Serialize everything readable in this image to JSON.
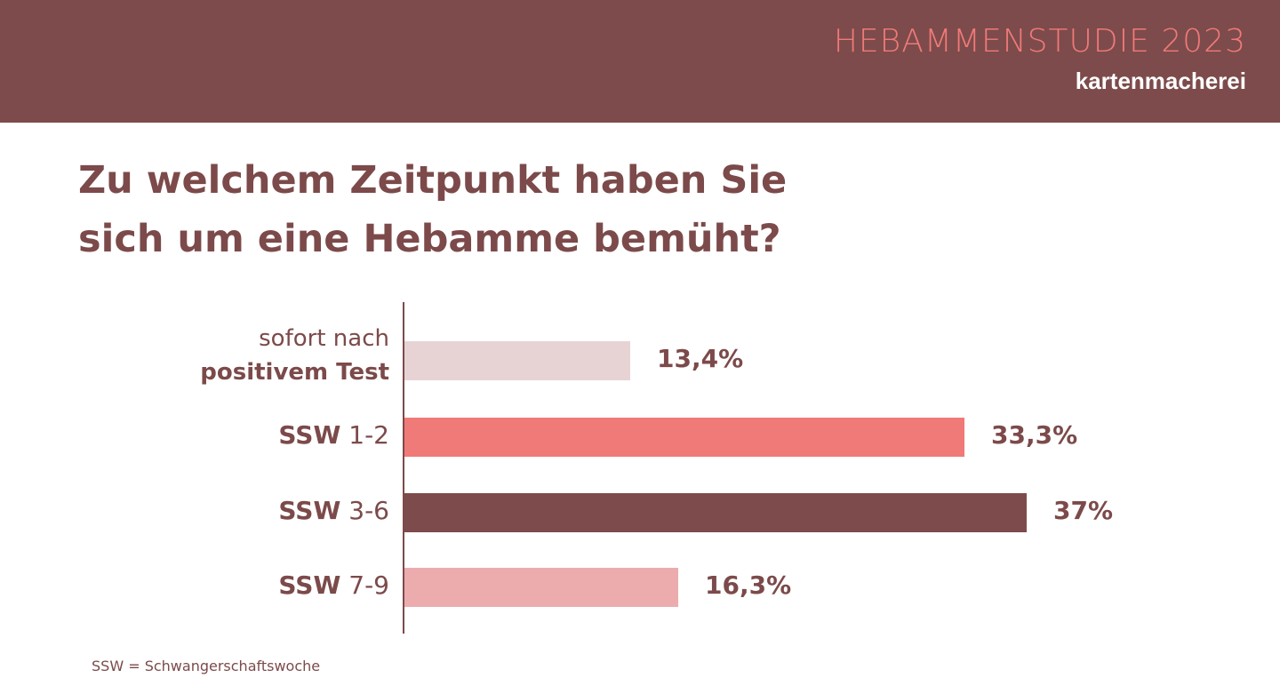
{
  "header": {
    "title": "HEBAMMENSTUDIE 2023",
    "brand": "kartenmacherei"
  },
  "question": {
    "line1": "Zu welchem Zeitpunkt haben Sie",
    "line2": "sich um eine Hebamme bemüht?"
  },
  "footnote": "SSW = Schwangerschaftswoche",
  "colors": {
    "header_bg": "#7d4b4b",
    "title_accent": "#f07a78",
    "text": "#7c4a4a"
  },
  "chart_data": {
    "type": "bar",
    "orientation": "horizontal",
    "title": "Zu welchem Zeitpunkt haben Sie sich um eine Hebamme bemüht?",
    "categories": [
      "sofort nach positivem Test",
      "SSW 1-2",
      "SSW 3-6",
      "SSW 7-9"
    ],
    "labels": [
      {
        "part1": "sofort nach",
        "part2": "positivem Test"
      },
      {
        "part1": "SSW",
        "part2": "1-2"
      },
      {
        "part1": "SSW",
        "part2": "3-6"
      },
      {
        "part1": "SSW",
        "part2": "7-9"
      }
    ],
    "values": [
      13.4,
      33.3,
      37,
      16.3
    ],
    "value_labels": [
      "13,4%",
      "33,3%",
      "37%",
      "16,3%"
    ],
    "bar_colors": [
      "#e8d3d4",
      "#f07a78",
      "#7d4b4b",
      "#ecacae"
    ],
    "xlim": [
      0,
      37
    ],
    "grid": false
  }
}
